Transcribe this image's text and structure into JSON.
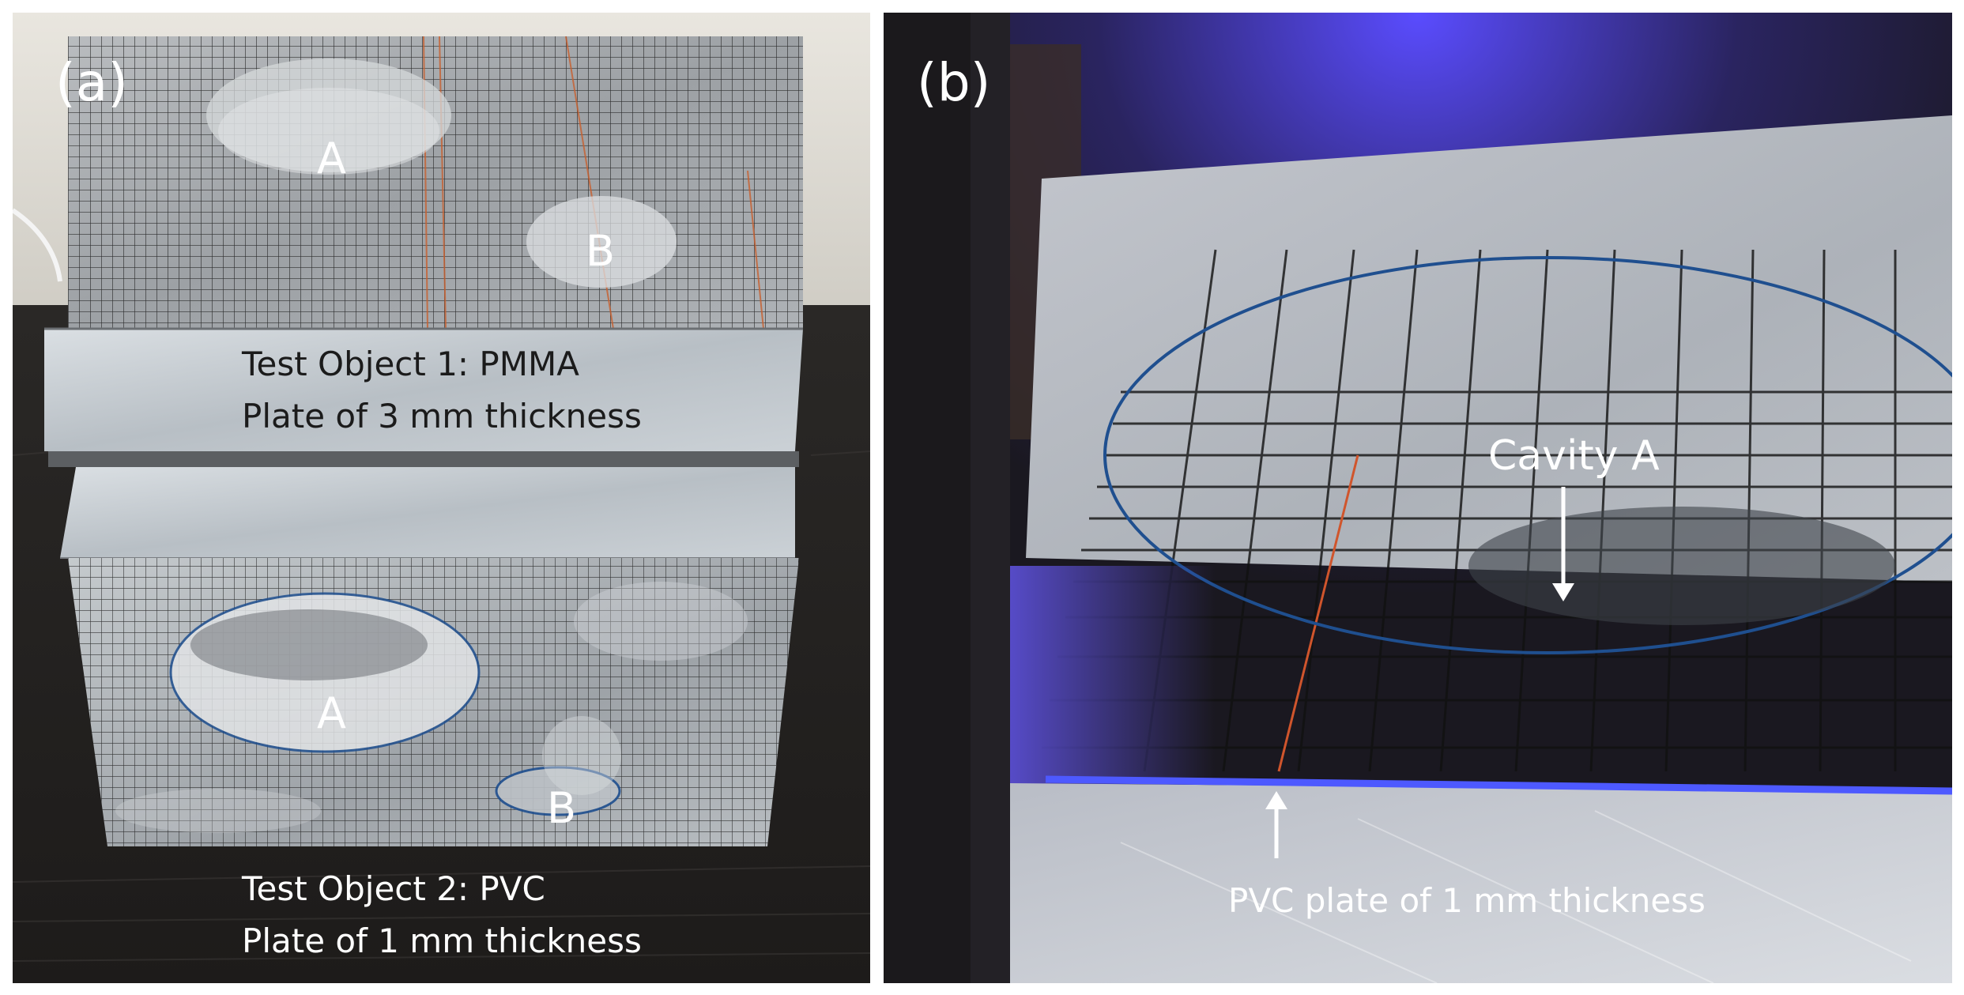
{
  "panel_a": {
    "label": "(a)",
    "top_object": {
      "cavity_a_label": "A",
      "cavity_b_label": "B",
      "caption_line1": "Test Object 1: PMMA",
      "caption_line2": "Plate of 3 mm thickness"
    },
    "bottom_object": {
      "cavity_a_label": "A",
      "cavity_b_label": "B",
      "caption_line1": "Test Object 2: PVC",
      "caption_line2": "Plate of 1 mm thickness"
    }
  },
  "panel_b": {
    "label": "(b)",
    "cavity_label": "Cavity A",
    "plate_label": "PVC plate of 1 mm thickness"
  },
  "colors": {
    "outline_blue": "#1f4f8f",
    "uv_glow": "#5a4cff",
    "grid_line": "#111111"
  }
}
